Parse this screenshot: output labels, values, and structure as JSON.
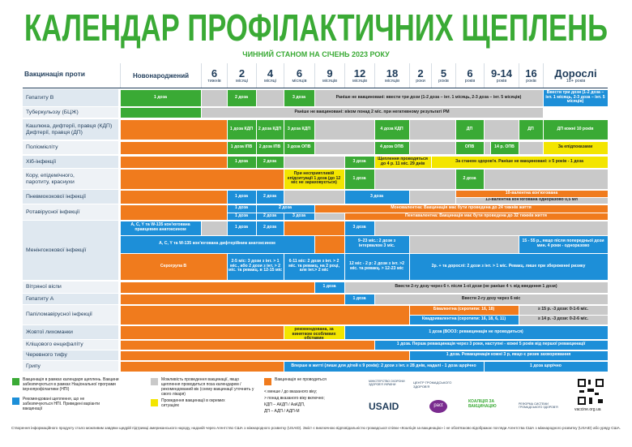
{
  "header": {
    "title": "КАЛЕНДАР ПРОФІЛАКТИЧНИХ ЩЕПЛЕНЬ",
    "subtitle": "ЧИННИЙ СТАНОМ НА СІЧЕНЬ 2023 РОКУ"
  },
  "table": {
    "corner": "Вакцинація проти",
    "columns": [
      {
        "label": "Новонароджений"
      },
      {
        "label": "6",
        "unit": "тижнів"
      },
      {
        "label": "2",
        "unit": "місяці"
      },
      {
        "label": "4",
        "unit": "місяці"
      },
      {
        "label": "6",
        "unit": "місяців"
      },
      {
        "label": "9",
        "unit": "місяців"
      },
      {
        "label": "12",
        "unit": "місяців"
      },
      {
        "label": "18",
        "unit": "місяців"
      },
      {
        "label": "2",
        "unit": "роки"
      },
      {
        "label": "5",
        "unit": "років"
      },
      {
        "label": "6",
        "unit": "років"
      },
      {
        "label": "9-14",
        "unit": "років"
      },
      {
        "label": "16",
        "unit": "років"
      },
      {
        "label": "Дорослі",
        "unit": "18+ років"
      }
    ],
    "rows": [
      {
        "label": [
          "Гепатиту В"
        ],
        "cells": [
          "1 доза",
          "2 доза",
          "3 доза",
          "Раніше не вакциновані: ввести три дози (1-2 доза – інт. 1 місяць, 2-3 доза – інт. 5 місяців)",
          "Ввести три дози (1-2 доза – інт. 1 місяць, 2-3 доза – інт. 5 місяців)"
        ]
      },
      {
        "label": [
          "Туберкульозу (БЦЖ)"
        ],
        "cells": [
          "Раніше не вакциновані: віком понад 2 міс. при негативному результаті РМ"
        ]
      },
      {
        "label": [
          "Кашлюка, дифтерії, правця (КДП)",
          "Дифтерії, правця (ДП)"
        ],
        "cells": [
          "1 доза КДП",
          "2 доза КДП",
          "3 доза КДП",
          "4 доза КДП",
          "ДП",
          "ДП",
          "ДП кожні 10 років"
        ]
      },
      {
        "label": [
          "Поліомієліту"
        ],
        "cells": [
          "1 доза ІПВ",
          "2 доза ІПВ",
          "3 доза ОПВ",
          "4 доза ОПВ",
          "ОПВ",
          "14 р. ОПВ",
          "За епідпоказами"
        ]
      },
      {
        "label": [
          "Хіб-інфекції"
        ],
        "cells": [
          "1 доза",
          "2 доза",
          "3 доза",
          "Щеплення проводяться до 4 р. 11 міс. 29 днів",
          "За станом здоров'я. Раніше не вакциновані: ≥ 5 років - 1 доза"
        ]
      },
      {
        "label": [
          "Кору, епідемічного,",
          "паротиту, краснухи"
        ],
        "cells": [
          "При несприятливій епідситуації 1 доза (до 12 міс не зараховується)",
          "1 доза",
          "2 доза"
        ]
      },
      {
        "label": [
          "Пневмококової інфекції"
        ],
        "cells": [
          "1 доза",
          "2 доза",
          "3 доза",
          "10-валентна кон'югована",
          "13-валентна кон'югована одноразово 0,5 мл"
        ]
      },
      {
        "label": [
          "Ротавірусної інфекції"
        ],
        "cells": [
          "1 доза",
          "2 доза",
          "Моновалентна: Вакцинація має бути проведена до 24 тижнів життя",
          "1 доза",
          "2 доза",
          "3 доза",
          "Пентавалентна: Вакцинація має бути проведена до 32 тижнів життя"
        ]
      },
      {
        "label": [
          "Менінгококової інфекції"
        ],
        "cells": [
          "A, C, Y та W-135 кон'югована правцевим анатоксином",
          "1 доза",
          "2 доза",
          "3 доза",
          "A, C, Y та W-135 кон'югована дифтерійним анатоксином",
          "9–23 міс.: 2 дози з інтервалом 3 міс.",
          "15 - 55 р., якщо після попередньої дози мин. 4 роки - одноразово",
          "Серогрупа В",
          "2-5 міс: 3 дози з інт. > 1 міс., або 2 дози з інт. > 2 міс. та ревакц. в 12-15 міс",
          "6-11 міс: 2 дози з інт. > 2 міс. та ревакц. на 2 році, але інт.> 2 міс",
          "12 міс - 2 р: 2 дози з інт. >2 міс. та ревакц. > 12-23 міс",
          "2р. + та дорослі: 2 дози з інт. > 1 міс. Ревакц. лише при збереженні ризику"
        ]
      },
      {
        "label": [
          "Вітряної віспи"
        ],
        "cells": [
          "1 доза",
          "Ввести 2-гу дозу через 6 т. після 1-ої дози (не раніше 4 т. від введення 1 дози)"
        ]
      },
      {
        "label": [
          "Гепатиту А"
        ],
        "cells": [
          "1 доза",
          "Ввести 2-гу дозу через 6 міс"
        ]
      },
      {
        "label": [
          "Папіломавірусної інфекції"
        ],
        "cells": [
          "Бівалентна (серотипи: 16, 18)",
          "≥ 15 р. -3 дози: 0-1-6 міс.",
          "Квадривалентна (серотипи: 16, 18, 6, 11)",
          "≥ 14 р. -3 дози: 0-2-6 міс."
        ]
      },
      {
        "label": [
          "Жовтої лихоманки"
        ],
        "cells": [
          "6 – 9 міс. не рекомендована, за винятком особливих обставин",
          "1 доза (ВООЗ: ревакцинація не проводиться)"
        ]
      },
      {
        "label": [
          "Кліщового енцефаліту"
        ],
        "cells": [
          "1 доза. Перша ревакцинація через 3 роки, наступні - кожні 5 років від першої ревакцинації"
        ]
      },
      {
        "label": [
          "Черевного тифу"
        ],
        "cells": [
          "1 доза. Ревакцинація кожні 3 р, якщо є ризик захворювання"
        ]
      },
      {
        "label": [
          "Грипу"
        ],
        "cells": [
          "Вперше в житті (лише для дітей ≤ 9 років): 2 дози з інт. ≥ 28 днів, надалі - 1 доза щорічно",
          "1 доза щорічно"
        ]
      }
    ]
  },
  "legend": {
    "items": [
      "Вакцинація в рамках календаря щеплень. Вакцини забезпечуються в рамках Національної програми імунопрофілактики (НПІ)",
      "Рекомендовані щеплення, що не забезпечуються НПІ. Приведені варіанти вакцинації",
      "Можливість проведення вакцинації, якщо щеплення проводиться поза календарем / рекомендований вік (схему вакцинації уточнить у свого лікаря)",
      "Проведення вакцинації в окремих ситуаціях",
      "Вакцинація не проводиться"
    ],
    "notes": [
      "< менше / до вказаного віку;",
      "> понад вказаного віку включно;",
      "КДП – АКДП / АаКДП,",
      "ДП – АДП / АДП-М"
    ]
  },
  "logos": [
    "МІНІСТЕРСТВО ОХОРОНИ ЗДОРОВ'Я УКРАЇНИ",
    "ЦЕНТР ГРОМАДСЬКОГО ЗДОРОВ'Я",
    "USAID",
    "pact",
    "КОАЛІЦІЯ ЗА ВАКЦИНАЦІЮ",
    "РЕФОРМА СИСТЕМИ ГРОМАДСЬКОГО ЗДОРОВ'Я"
  ],
  "site": "vaccine.org.ua",
  "footer": "Створення інформаційного продукту стало можливим завдяки щедрій підтримці американського народу, наданій через Агентство США з міжнародного розвитку (USAID). Зміст є виключною відповідальністю громадської спілки «Коаліція за вакцинацію» і не обов'язково відображає погляди Агентства США з міжнародного розвитку (USAID) або уряду США."
}
